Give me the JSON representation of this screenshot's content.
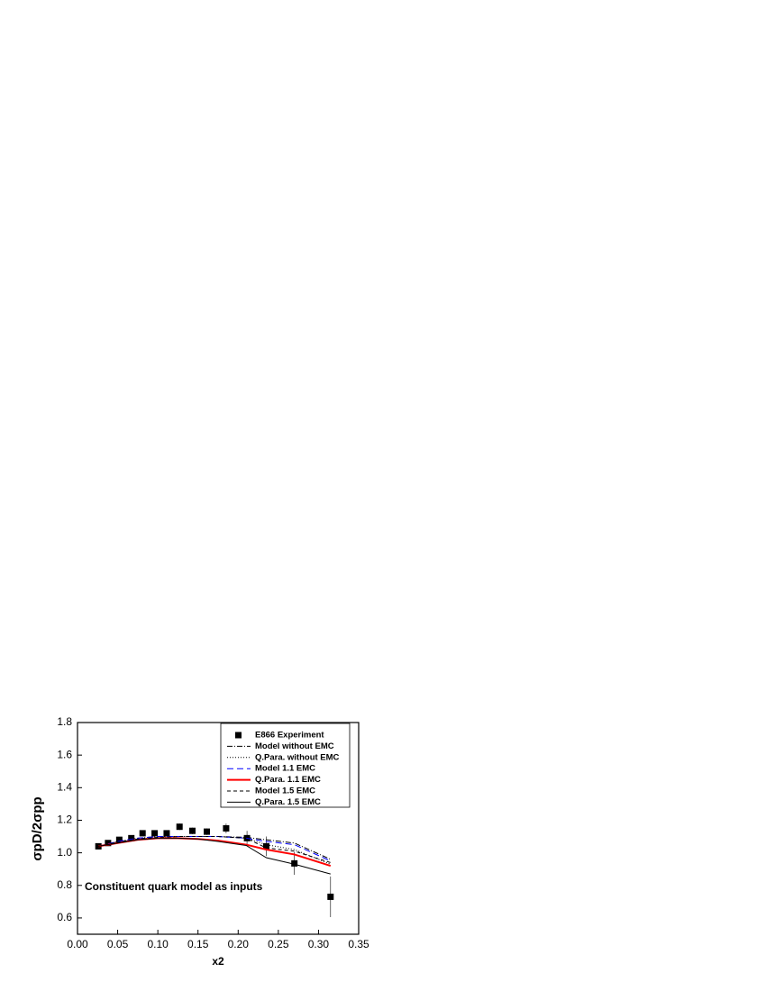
{
  "chart_data": {
    "type": "line",
    "xlabel": "x2",
    "ylabel": "σpD/2σpp",
    "annotation": "Constituent quark model as inputs",
    "xlim": [
      0,
      0.35
    ],
    "ylim": [
      0.5,
      1.8
    ],
    "xticks": [
      {
        "value": 0,
        "label": "0.00"
      },
      0.05,
      {
        "value": 0.1,
        "label": "0.10"
      },
      0.15,
      {
        "value": 0.2,
        "label": "0.20"
      },
      0.25,
      {
        "value": 0.3,
        "label": "0.30"
      },
      0.35
    ],
    "yticks": [
      0.6,
      0.8,
      {
        "value": 1,
        "label": "1.0"
      },
      1.2,
      1.4,
      1.6,
      1.8
    ],
    "series": [
      {
        "name": "E866 Experiment",
        "color": "#000000",
        "marker": "square",
        "x": [
          0.026,
          0.038,
          0.052,
          0.067,
          0.081,
          0.096,
          0.111,
          0.127,
          0.143,
          0.161,
          0.185,
          0.211,
          0.235,
          0.27,
          0.315
        ],
        "values": [
          1.04,
          1.06,
          1.08,
          1.09,
          1.12,
          1.12,
          1.12,
          1.16,
          1.135,
          1.13,
          1.15,
          1.09,
          1.04,
          0.935,
          0.73
        ],
        "errors": [
          0.015,
          0.015,
          0.015,
          0.015,
          0.015,
          0.015,
          0.015,
          0.02,
          0.02,
          0.02,
          0.03,
          0.045,
          0.06,
          0.07,
          0.125
        ]
      },
      {
        "name": "Model without EMC",
        "color": "#000000",
        "dash": "6 2 1 2",
        "x": [
          0.026,
          0.05,
          0.075,
          0.1,
          0.125,
          0.15,
          0.175,
          0.21,
          0.235,
          0.27,
          0.315
        ],
        "values": [
          1.04,
          1.07,
          1.09,
          1.1,
          1.1,
          1.1,
          1.1,
          1.095,
          1.08,
          1.06,
          0.96
        ]
      },
      {
        "name": "Q.Para. without EMC",
        "color": "#000000",
        "dash": "1 2",
        "x": [
          0.026,
          0.05,
          0.075,
          0.1,
          0.125,
          0.15,
          0.175,
          0.21,
          0.235,
          0.27,
          0.315
        ],
        "values": [
          1.04,
          1.065,
          1.085,
          1.095,
          1.1,
          1.1,
          1.1,
          1.09,
          1.05,
          1.02,
          0.93
        ]
      },
      {
        "name": "Model 1.1 EMC",
        "color": "#0000ff",
        "dash": "7 4",
        "x": [
          0.026,
          0.05,
          0.075,
          0.1,
          0.125,
          0.15,
          0.175,
          0.21,
          0.235,
          0.27,
          0.315
        ],
        "values": [
          1.04,
          1.07,
          1.09,
          1.1,
          1.1,
          1.1,
          1.1,
          1.09,
          1.07,
          1.05,
          0.95
        ]
      },
      {
        "name": "Q.Para. 1.1 EMC",
        "color": "#ff0000",
        "width": 2,
        "x": [
          0.026,
          0.05,
          0.075,
          0.1,
          0.125,
          0.15,
          0.175,
          0.21,
          0.235,
          0.27,
          0.315
        ],
        "values": [
          1.04,
          1.06,
          1.08,
          1.09,
          1.09,
          1.085,
          1.075,
          1.05,
          1.02,
          0.99,
          0.92
        ]
      },
      {
        "name": "Model 1.5 EMC",
        "color": "#000000",
        "dash": "4 3",
        "x": [
          0.026,
          0.05,
          0.075,
          0.1,
          0.125,
          0.15,
          0.175,
          0.21,
          0.235,
          0.27,
          0.315
        ],
        "values": [
          1.04,
          1.065,
          1.085,
          1.095,
          1.1,
          1.1,
          1.1,
          1.09,
          1.03,
          1.01,
          0.94
        ]
      },
      {
        "name": "Q.Para. 1.5 EMC",
        "color": "#000000",
        "x": [
          0.026,
          0.05,
          0.075,
          0.1,
          0.125,
          0.15,
          0.175,
          0.21,
          0.235,
          0.27,
          0.315
        ],
        "values": [
          1.04,
          1.06,
          1.08,
          1.09,
          1.09,
          1.085,
          1.07,
          1.045,
          0.97,
          0.93,
          0.87
        ]
      }
    ]
  }
}
